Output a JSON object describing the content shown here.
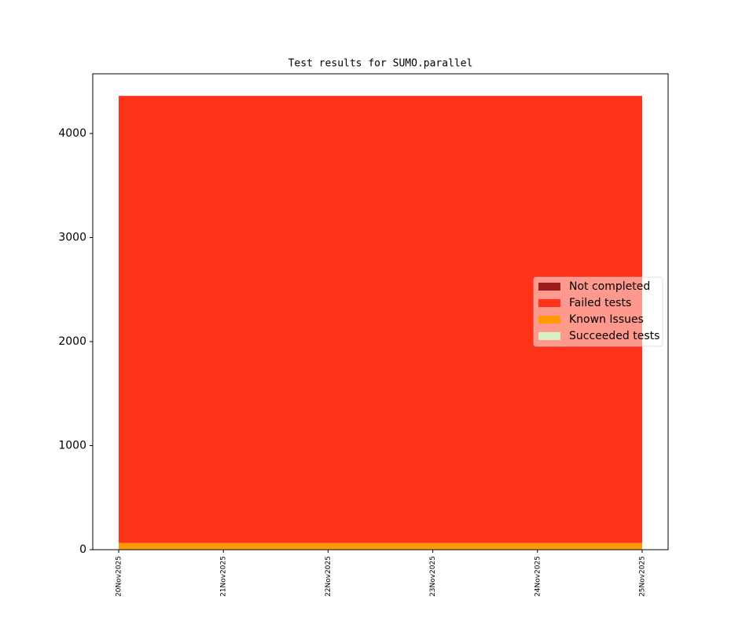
{
  "chart_data": {
    "type": "stacked_area",
    "title": "Test results for SUMO.parallel",
    "categories": [
      "20Nov2025",
      "21Nov2025",
      "22Nov2025",
      "23Nov2025",
      "24Nov2025",
      "25Nov2025"
    ],
    "series": [
      {
        "name": "Succeeded tests",
        "color": "#d5f0c2",
        "values": [
          5,
          5,
          5,
          5,
          5,
          5
        ]
      },
      {
        "name": "Known Issues",
        "color": "#ff9a00",
        "values": [
          60,
          60,
          60,
          60,
          60,
          60
        ]
      },
      {
        "name": "Failed tests",
        "color": "#ff331a",
        "values": [
          4297,
          4297,
          4297,
          4297,
          4297,
          4297
        ]
      },
      {
        "name": "Not completed",
        "color": "#9b1c1c",
        "values": [
          0,
          0,
          0,
          0,
          0,
          0
        ]
      }
    ],
    "legend_order": [
      3,
      2,
      1,
      0
    ],
    "ylim": [
      0,
      4574
    ],
    "yticks": [
      0,
      1000,
      2000,
      3000,
      4000
    ],
    "legend": "center right"
  }
}
